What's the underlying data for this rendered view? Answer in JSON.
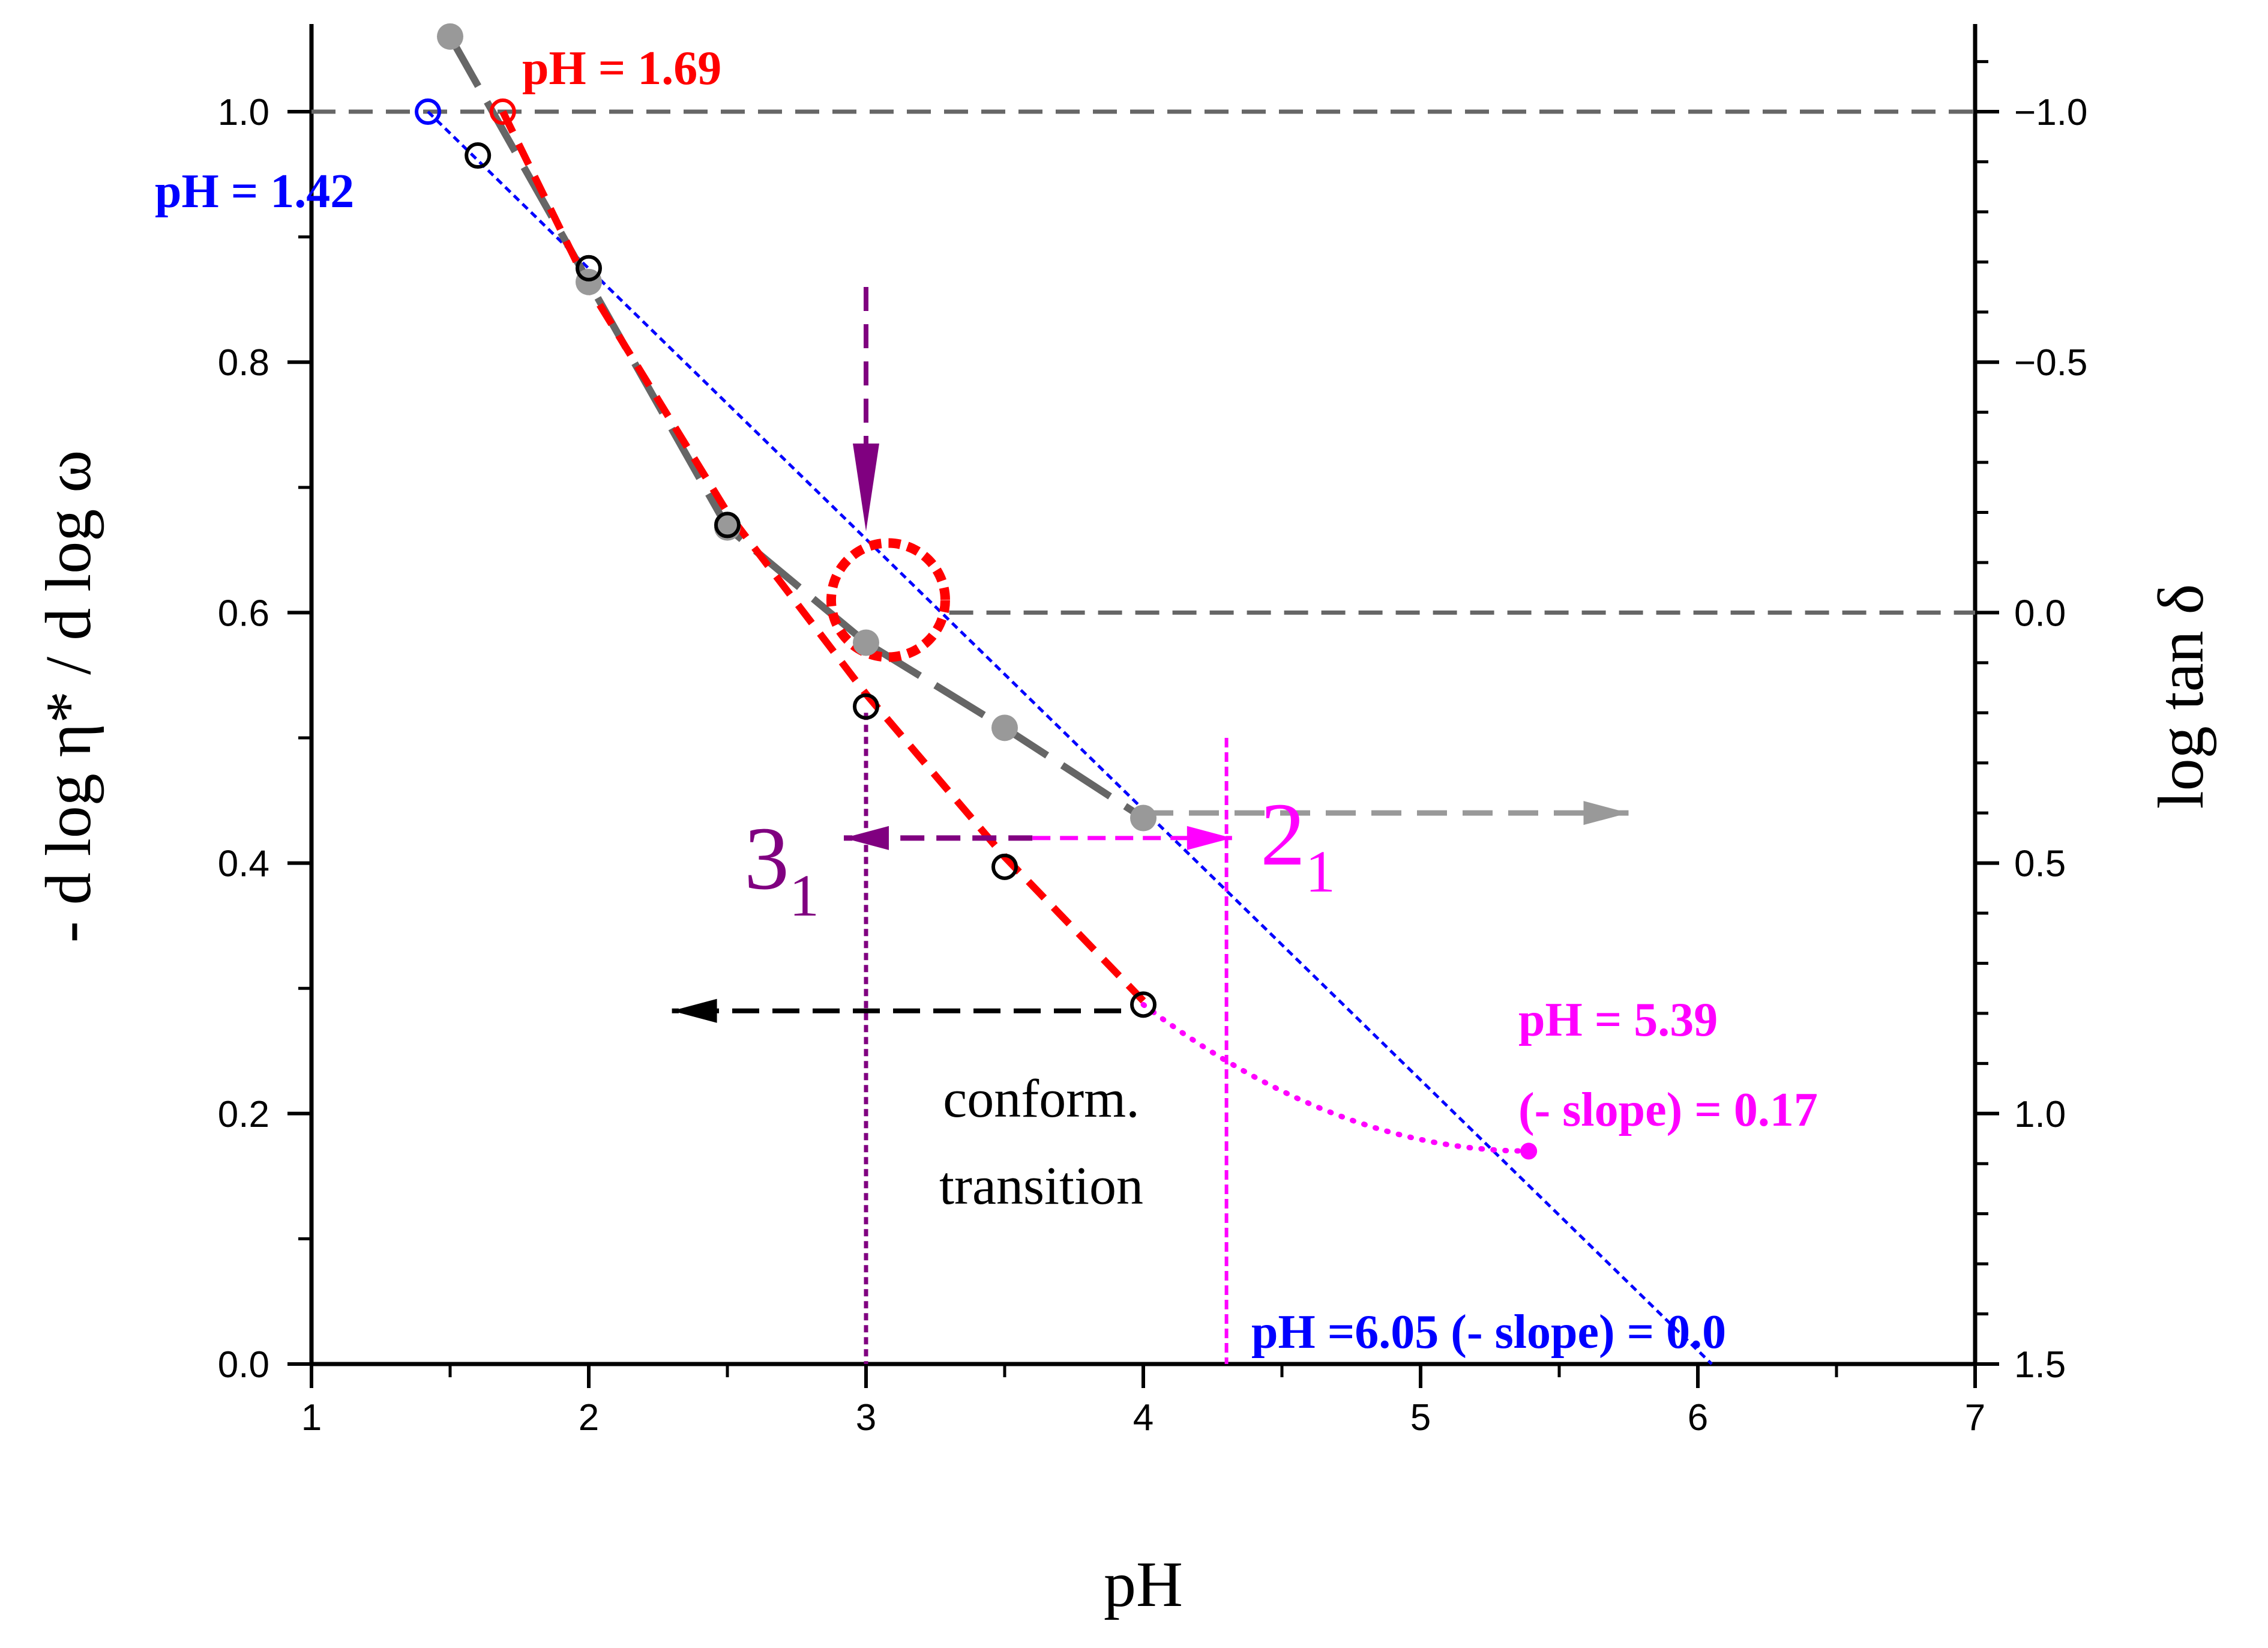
{
  "chart_data": {
    "type": "scatter",
    "xlabel": "pH",
    "ylabel": "- d log η* / d log ω",
    "ylabel_right": "log tan δ",
    "xlim": [
      1,
      7
    ],
    "ylim": [
      0,
      1.07
    ],
    "ylim_right": [
      1.5,
      -1.1
    ],
    "x_ticks": [
      "1",
      "2",
      "3",
      "4",
      "5",
      "6",
      "7"
    ],
    "y_ticks": [
      "0.0",
      "0.2",
      "0.4",
      "0.6",
      "0.8",
      "1.0"
    ],
    "y_ticks_right": [
      "-1.0",
      "-0.5",
      "0.0",
      "0.5",
      "1.0",
      "1.5"
    ],
    "series": [
      {
        "name": "-d log η*/d log ω (open circles)",
        "color": "#000000",
        "x": [
          1.6,
          2.0,
          2.5,
          3.0,
          3.5,
          4.0
        ],
        "y": [
          0.965,
          0.875,
          0.67,
          0.525,
          0.397,
          0.287
        ]
      },
      {
        "name": "log tan δ (filled grey)",
        "color": "#999999",
        "x": [
          1.5,
          2.0,
          2.5,
          3.0,
          3.5,
          4.0
        ],
        "y_right": [
          -1.15,
          -0.66,
          -0.17,
          0.06,
          0.23,
          0.41
        ]
      },
      {
        "name": "red dashed fit",
        "color": "#ff0000",
        "x": [
          1.69,
          2.0,
          2.5,
          3.0,
          3.5,
          4.0
        ],
        "y": [
          1.0,
          0.86,
          0.68,
          0.535,
          0.405,
          0.29
        ]
      },
      {
        "name": "blue dotted fit",
        "color": "#0000ff",
        "x": [
          1.42,
          6.05
        ],
        "y": [
          1.0,
          0.0
        ]
      },
      {
        "name": "magenta dotted extrapolation",
        "color": "#ff00ff",
        "x": [
          4.0,
          4.5,
          5.0,
          5.39
        ],
        "y": [
          0.287,
          0.22,
          0.18,
          0.17
        ]
      }
    ],
    "annotations": {
      "ph169": "pH = 1.69",
      "ph142": "pH = 1.42",
      "ph539": "pH = 5.39",
      "slope017": "(- slope) = 0.17",
      "ph605": "pH =6.05  (- slope) = 0.0",
      "label3": "3",
      "label3_sub": "1",
      "label2": "2",
      "label2_sub": "1",
      "conform1": "conform.",
      "conform2": "transition"
    },
    "colors": {
      "red": "#ff0000",
      "blue": "#0000ff",
      "magenta": "#ff00ff",
      "purple": "#800080",
      "grey": "#666666",
      "lightgrey": "#999999"
    }
  }
}
